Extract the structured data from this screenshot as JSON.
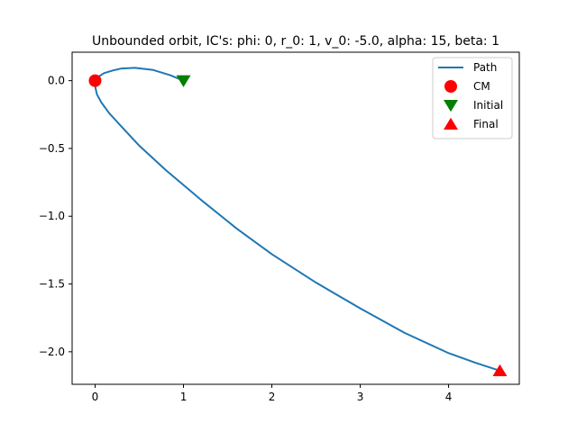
{
  "chart_data": {
    "type": "line",
    "title": "Unbounded orbit, IC's: phi: 0, r_0: 1, v_0: -5.0, alpha: 15, beta: 1",
    "xlabel": "",
    "ylabel": "",
    "xlim": [
      -0.26,
      4.8
    ],
    "ylim": [
      -2.24,
      0.21
    ],
    "xticks": [
      0,
      1,
      2,
      3,
      4
    ],
    "yticks": [
      0.0,
      -0.5,
      -1.0,
      -1.5,
      -2.0
    ],
    "xtick_labels": [
      "0",
      "1",
      "2",
      "3",
      "4"
    ],
    "ytick_labels": [
      "0.0",
      "−0.5",
      "−1.0",
      "−1.5",
      "−2.0"
    ],
    "grid": false,
    "legend_position": "top-right",
    "series": [
      {
        "name": "Path",
        "kind": "line",
        "color": "#1f77b4",
        "x": [
          1.0,
          0.85,
          0.65,
          0.45,
          0.3,
          0.2,
          0.1,
          0.04,
          0.01,
          0.0,
          0.02,
          0.07,
          0.16,
          0.3,
          0.5,
          0.8,
          1.2,
          1.6,
          2.0,
          2.5,
          3.0,
          3.5,
          4.0,
          4.3,
          4.58
        ],
        "y": [
          0.0,
          0.04,
          0.08,
          0.095,
          0.09,
          0.075,
          0.055,
          0.03,
          0.0,
          -0.04,
          -0.1,
          -0.16,
          -0.24,
          -0.34,
          -0.48,
          -0.66,
          -0.88,
          -1.09,
          -1.28,
          -1.49,
          -1.68,
          -1.86,
          -2.01,
          -2.08,
          -2.14
        ]
      },
      {
        "name": "CM",
        "kind": "marker",
        "marker": "circle",
        "color": "#ff0000",
        "x": [
          0
        ],
        "y": [
          0
        ]
      },
      {
        "name": "Initial",
        "kind": "marker",
        "marker": "triangle-down",
        "color": "#008000",
        "x": [
          1
        ],
        "y": [
          0
        ]
      },
      {
        "name": "Final",
        "kind": "marker",
        "marker": "triangle-up",
        "color": "#ff0000",
        "x": [
          4.58
        ],
        "y": [
          -2.14
        ]
      }
    ]
  }
}
